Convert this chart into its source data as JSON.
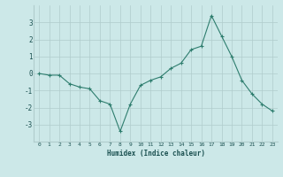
{
  "x": [
    0,
    1,
    2,
    3,
    4,
    5,
    6,
    7,
    8,
    9,
    10,
    11,
    12,
    13,
    14,
    15,
    16,
    17,
    18,
    19,
    20,
    21,
    22,
    23
  ],
  "y": [
    0.0,
    -0.1,
    -0.1,
    -0.6,
    -0.8,
    -0.9,
    -1.6,
    -1.8,
    -3.4,
    -1.8,
    -0.7,
    -0.4,
    -0.2,
    0.3,
    0.6,
    1.4,
    1.6,
    3.4,
    2.2,
    1.0,
    -0.4,
    -1.2,
    -1.8,
    -2.2
  ],
  "xlabel": "Humidex (Indice chaleur)",
  "ylim": [
    -4,
    4
  ],
  "xlim": [
    -0.5,
    23.5
  ],
  "line_color": "#2e7d6e",
  "marker": "+",
  "bg_color": "#cce8e8",
  "grid_color": "#b0cccc",
  "tick_label_color": "#1a5050",
  "xlabel_color": "#1a5050",
  "yticks": [
    -3,
    -2,
    -1,
    0,
    1,
    2,
    3
  ],
  "xticks": [
    0,
    1,
    2,
    3,
    4,
    5,
    6,
    7,
    8,
    9,
    10,
    11,
    12,
    13,
    14,
    15,
    16,
    17,
    18,
    19,
    20,
    21,
    22,
    23
  ]
}
